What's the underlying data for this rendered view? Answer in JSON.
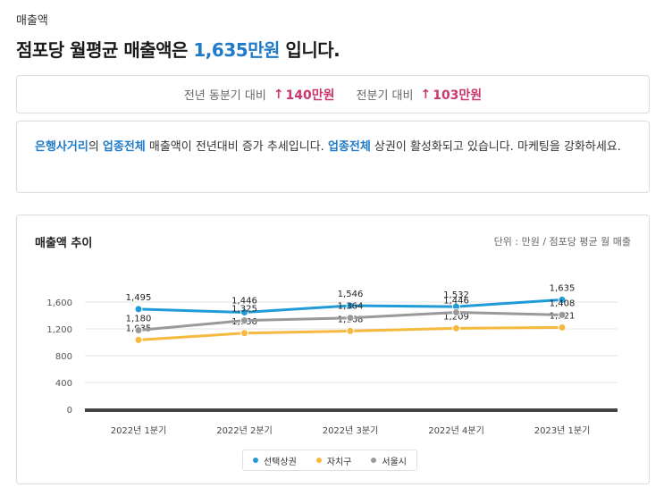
{
  "section_label": "매출액",
  "headline": {
    "prefix": "점포당 월평균 매출액은 ",
    "value": "1,635만원",
    "suffix": " 입니다."
  },
  "compare": {
    "yoy_label": "전년 동분기 대비",
    "yoy_arrow": "↑",
    "yoy_value": "140만원",
    "qoq_label": "전분기 대비",
    "qoq_arrow": "↑",
    "qoq_value": "103만원",
    "accent_color": "#c8376d"
  },
  "insight": {
    "kw1": "은행사거리",
    "t1": "의 ",
    "kw2": "업종전체",
    "t2": " 매출액이 전년대비 증가 추세입니다. ",
    "kw3": "업종전체",
    "t3": " 상권이 활성화되고 있습니다. 마케팅을 강화하세요."
  },
  "chart": {
    "title": "매출액 추이",
    "unit": "단위 : 만원 / 점포당 평균 월 매출"
  },
  "chart_data": {
    "type": "line",
    "categories": [
      "2022년 1분기",
      "2022년 2분기",
      "2022년 3분기",
      "2022년 4분기",
      "2023년 1분기"
    ],
    "series": [
      {
        "name": "선택상권",
        "color": "#1f9bd7",
        "values": [
          1495,
          1446,
          1546,
          1532,
          1635
        ]
      },
      {
        "name": "자치구",
        "color": "#f5b93e",
        "values": [
          1035,
          1136,
          1168,
          1209,
          1221
        ]
      },
      {
        "name": "서울시",
        "color": "#999999",
        "values": [
          1180,
          1325,
          1364,
          1446,
          1408
        ]
      }
    ],
    "y_ticks": [
      0,
      400,
      800,
      1200,
      1600
    ],
    "y_tick_labels": [
      "0",
      "400",
      "800",
      "1,200",
      "1,600"
    ],
    "ylim": [
      0,
      1800
    ],
    "grid": true,
    "legend_position": "bottom"
  }
}
